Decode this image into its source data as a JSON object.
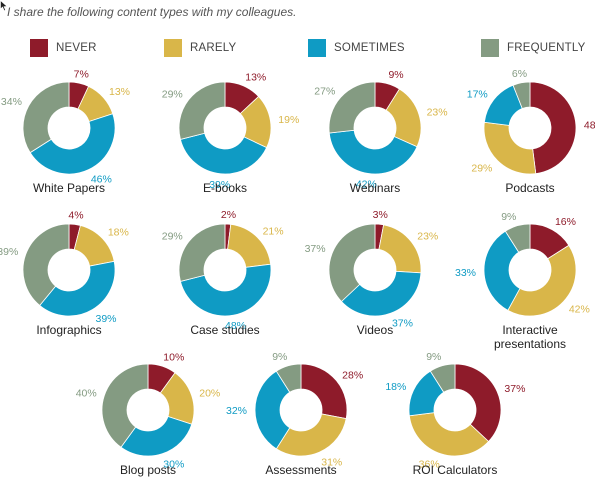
{
  "subtitle": "I share the following content types with my colleagues.",
  "legend": [
    {
      "label": "NEVER",
      "color": "#8e1b2a"
    },
    {
      "label": "RARELY",
      "color": "#d9b649"
    },
    {
      "label": "SOMETIMES",
      "color": "#0f9bc4"
    },
    {
      "label": "FREQUENTLY",
      "color": "#849b82"
    }
  ],
  "chart_data": {
    "type": "pie",
    "donut": true,
    "categories": [
      "NEVER",
      "RARELY",
      "SOMETIMES",
      "FREQUENTLY"
    ],
    "series": [
      {
        "name": "White Papers",
        "values": [
          7,
          13,
          46,
          34
        ]
      },
      {
        "name": "E-books",
        "values": [
          13,
          19,
          39,
          29
        ]
      },
      {
        "name": "Webinars",
        "values": [
          9,
          23,
          42,
          27
        ]
      },
      {
        "name": "Podcasts",
        "values": [
          48,
          29,
          17,
          6
        ]
      },
      {
        "name": "Infographics",
        "values": [
          4,
          18,
          39,
          39
        ]
      },
      {
        "name": "Case studies",
        "values": [
          2,
          21,
          48,
          29
        ]
      },
      {
        "name": "Videos",
        "values": [
          3,
          23,
          37,
          37
        ]
      },
      {
        "name": "Interactive\npresentations",
        "values": [
          16,
          42,
          33,
          9
        ]
      },
      {
        "name": "Blog posts",
        "values": [
          10,
          20,
          30,
          40
        ]
      },
      {
        "name": "Assessments",
        "values": [
          28,
          31,
          32,
          9
        ]
      },
      {
        "name": "ROI Calculators",
        "values": [
          37,
          36,
          18,
          9
        ]
      }
    ]
  }
}
